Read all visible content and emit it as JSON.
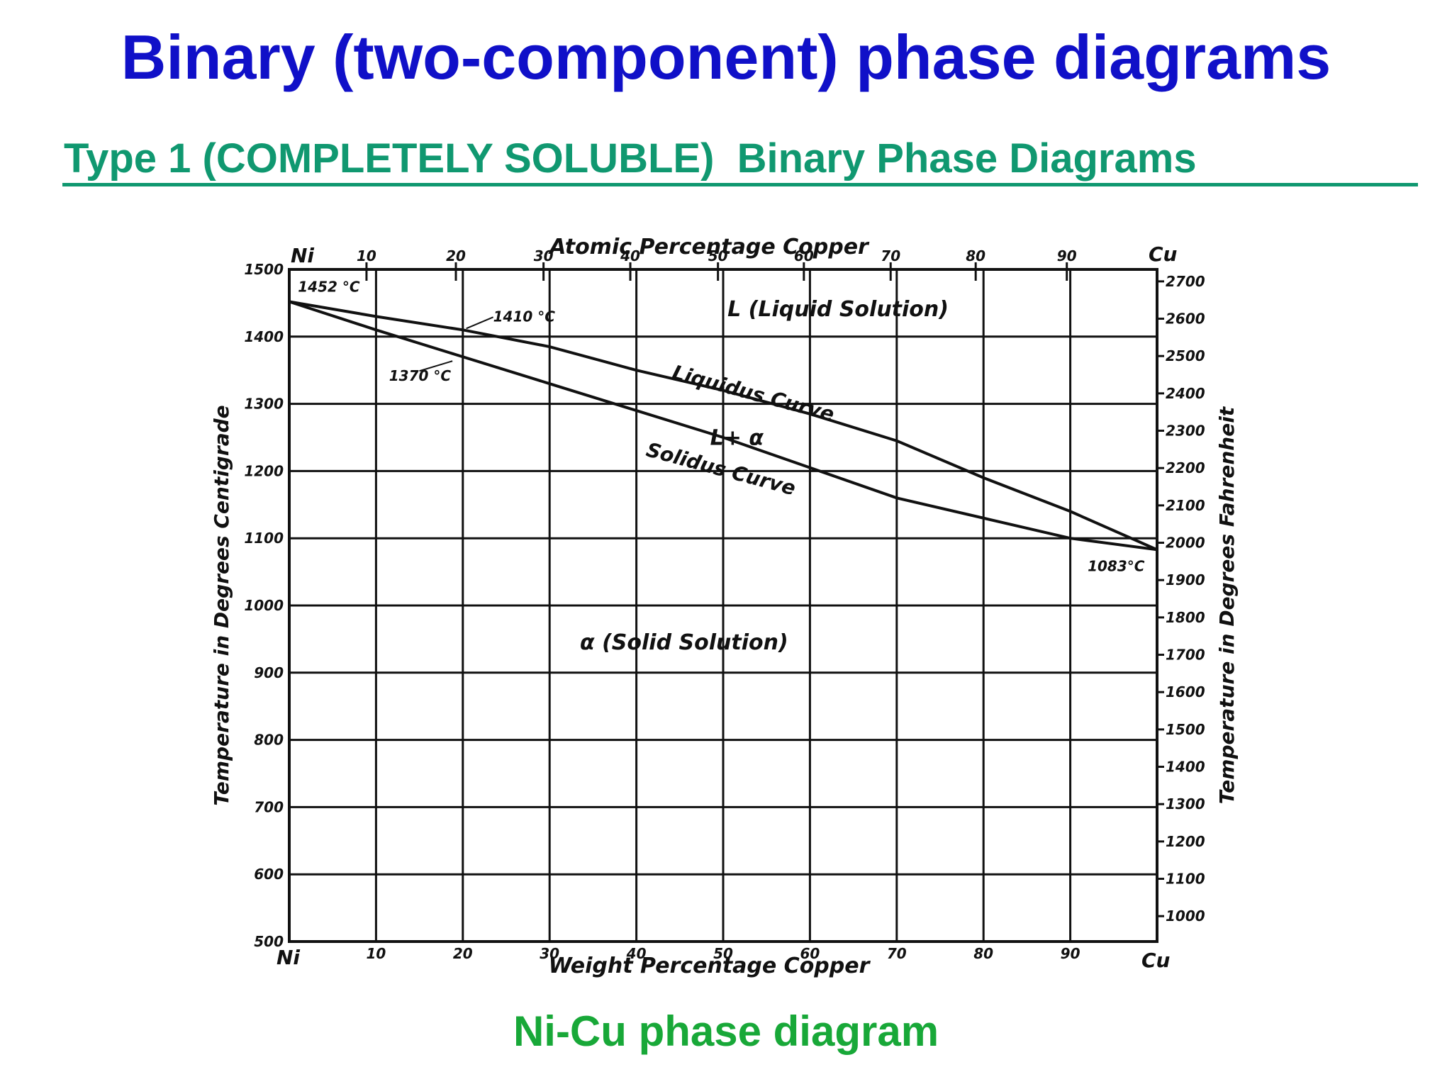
{
  "title": "Binary (two-component) phase diagrams",
  "subtitle": "Type 1 (COMPLETELY SOLUBLE)  Binary Phase Diagrams ",
  "caption": "Ni-Cu phase diagram",
  "colors": {
    "title": "#1010c8",
    "subtitle": "#109870",
    "caption": "#18a838",
    "ink": "#111111"
  },
  "chart_data": {
    "type": "line",
    "grid": true,
    "top_axis": {
      "label": "Atomic Percentage Copper",
      "end_left": "Ni",
      "end_right": "Cu",
      "ticks": [
        10,
        20,
        30,
        40,
        50,
        60,
        70,
        80,
        90
      ],
      "weight_pct_positions": [
        8.9,
        19.2,
        29.3,
        39.3,
        49.4,
        59.3,
        69.3,
        79.1,
        89.6
      ]
    },
    "xlabel": "Weight Percentage Copper",
    "x_end_left": "Ni",
    "x_end_right": "Cu",
    "xlim": [
      0,
      100
    ],
    "xticks": [
      10,
      20,
      30,
      40,
      50,
      60,
      70,
      80,
      90
    ],
    "ylabel": "Temperature in Degrees Centigrade",
    "ylim": [
      500,
      1500
    ],
    "yticks": [
      500,
      600,
      700,
      800,
      900,
      1000,
      1100,
      1200,
      1300,
      1400,
      1500
    ],
    "y2label": "Temperature in Degrees Fahrenheit",
    "y2ticks": [
      1000,
      1100,
      1200,
      1300,
      1400,
      1500,
      1600,
      1700,
      1800,
      1900,
      2000,
      2100,
      2200,
      2300,
      2400,
      2500,
      2600,
      2700
    ],
    "series": [
      {
        "name": "Liquidus Curve",
        "x": [
          0,
          10,
          20,
          30,
          40,
          50,
          60,
          70,
          80,
          90,
          100
        ],
        "y": [
          1452,
          1430,
          1410,
          1385,
          1350,
          1320,
          1285,
          1245,
          1190,
          1140,
          1083
        ]
      },
      {
        "name": "Solidus Curve",
        "x": [
          0,
          10,
          20,
          30,
          40,
          50,
          60,
          70,
          80,
          90,
          100
        ],
        "y": [
          1452,
          1410,
          1370,
          1330,
          1290,
          1250,
          1205,
          1160,
          1130,
          1100,
          1083
        ]
      }
    ],
    "annotations": {
      "ni_melt": "1452 °C",
      "liq_20": "1410 °C",
      "sol_20": "1370 °C",
      "cu_melt": "1083°C",
      "liquid": "L (Liquid Solution)",
      "two_phase": "L+ α",
      "solid": "α (Solid Solution)",
      "liquidus": "Liquidus Curve",
      "solidus": "Solidus Curve"
    }
  }
}
